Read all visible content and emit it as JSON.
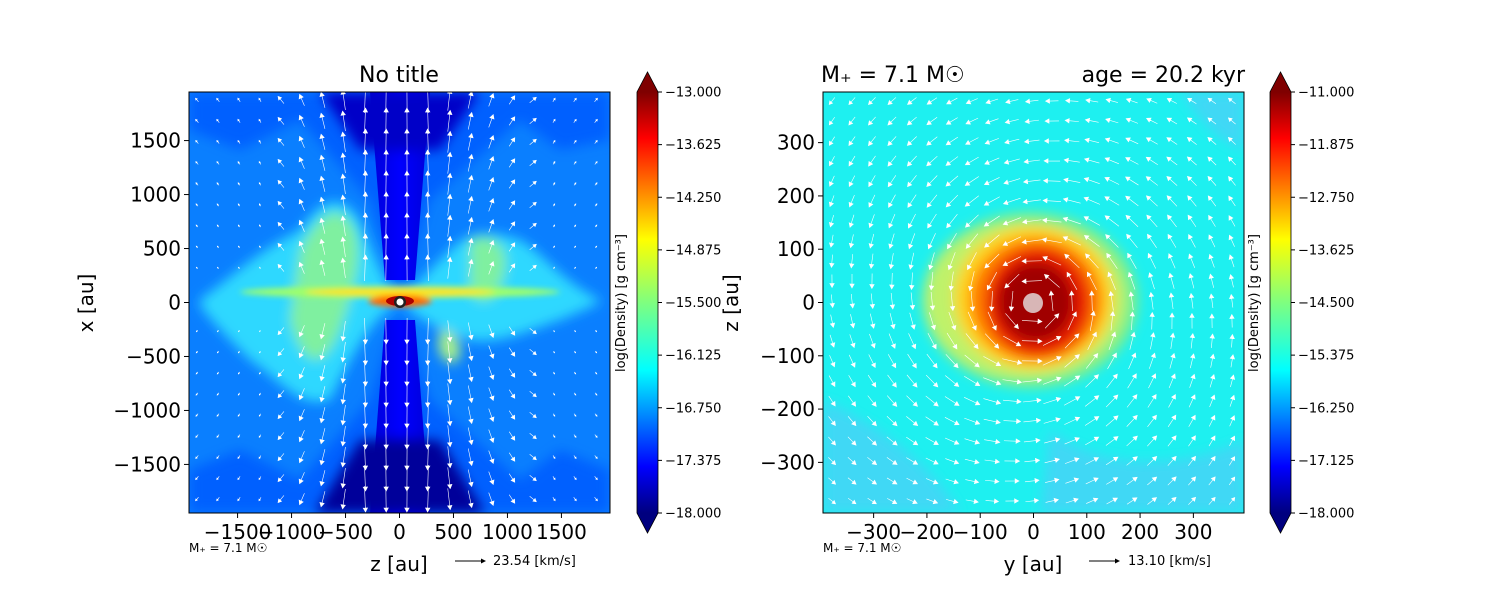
{
  "chart_data": [
    {
      "type": "heatmap",
      "panel": "left",
      "title": "No title",
      "xlabel": "z [au]",
      "ylabel": "x [au]",
      "xlim": [
        -1950,
        1950
      ],
      "ylim": [
        -1950,
        1950
      ],
      "x_ticks": [
        -1500,
        -1000,
        -500,
        0,
        500,
        1000,
        1500
      ],
      "x_tick_labels": [
        "−1500",
        "−1000",
        "−500",
        "0",
        "500",
        "1000",
        "1500"
      ],
      "y_ticks": [
        1500,
        1000,
        500,
        0,
        -500,
        -1000,
        -1500
      ],
      "y_tick_labels": [
        "1500",
        "1000",
        "500",
        "0",
        "−500",
        "−1000",
        "−1500"
      ],
      "colorbar": {
        "label": "log(Density) [g cm$^{-3}$]",
        "label_display": "log(Density) [g cm⁻³]",
        "min": -18.0,
        "max": -13.0,
        "ticks": [
          -13.0,
          -13.625,
          -14.25,
          -14.875,
          -15.5,
          -16.125,
          -16.75,
          -17.375,
          -18.0
        ],
        "tick_labels": [
          "−13.000",
          "−13.625",
          "−14.250",
          "−14.875",
          "−15.500",
          "−16.125",
          "−16.750",
          "−17.375",
          "−18.000"
        ],
        "colormap": "jet"
      },
      "corner_annotation": "M$_*$ = 7.1 M$_\\odot$",
      "corner_annotation_display": "M₊ = 7.1 M☉",
      "quiver_key_label": "23.54 [km/s]",
      "structure": "bipolar outflow along vertical axis with flared disk along midplane"
    },
    {
      "type": "heatmap",
      "panel": "right",
      "title_left": "M$_*$ = 7.1 M$_\\odot$",
      "title_left_display": "M₊ = 7.1 M☉",
      "title_right": "age = 20.2 kyr",
      "xlabel": "y [au]",
      "ylabel": "z [au]",
      "xlim": [
        -395,
        395
      ],
      "ylim": [
        -395,
        395
      ],
      "x_ticks": [
        -300,
        -200,
        -100,
        0,
        100,
        200,
        300
      ],
      "x_tick_labels": [
        "−300",
        "−200",
        "−100",
        "0",
        "100",
        "200",
        "300"
      ],
      "y_ticks": [
        300,
        200,
        100,
        0,
        -100,
        -200,
        -300
      ],
      "y_tick_labels": [
        "300",
        "200",
        "100",
        "0",
        "−100",
        "−200",
        "−300"
      ],
      "colorbar": {
        "label": "log(Density) [g cm$^{-3}$]",
        "label_display": "log(Density) [g cm⁻³]",
        "min": -18.0,
        "max": -11.0,
        "ticks": [
          -11.0,
          -11.875,
          -12.75,
          -13.625,
          -14.5,
          -15.375,
          -16.25,
          -17.125,
          -18.0
        ],
        "tick_labels": [
          "−11.000",
          "−11.875",
          "−12.750",
          "−13.625",
          "−14.500",
          "−15.375",
          "−16.250",
          "−17.125",
          "−18.000"
        ],
        "colormap": "jet"
      },
      "corner_annotation": "M$_*$ = 7.1 M$_\\odot$",
      "corner_annotation_display": "M₊ = 7.1 M☉",
      "quiver_key_label": "13.10 [km/s]",
      "structure": "face-on rotating disk with dense core at center"
    }
  ],
  "colors": {
    "jet": [
      "#00007f",
      "#0000ff",
      "#007fff",
      "#00ffff",
      "#7fff7f",
      "#ffff00",
      "#ff7f00",
      "#ff0000",
      "#7f0000"
    ],
    "arrow": "#ffffff",
    "sink_left": "#ffffff",
    "sink_right": "#d9b3b3"
  }
}
